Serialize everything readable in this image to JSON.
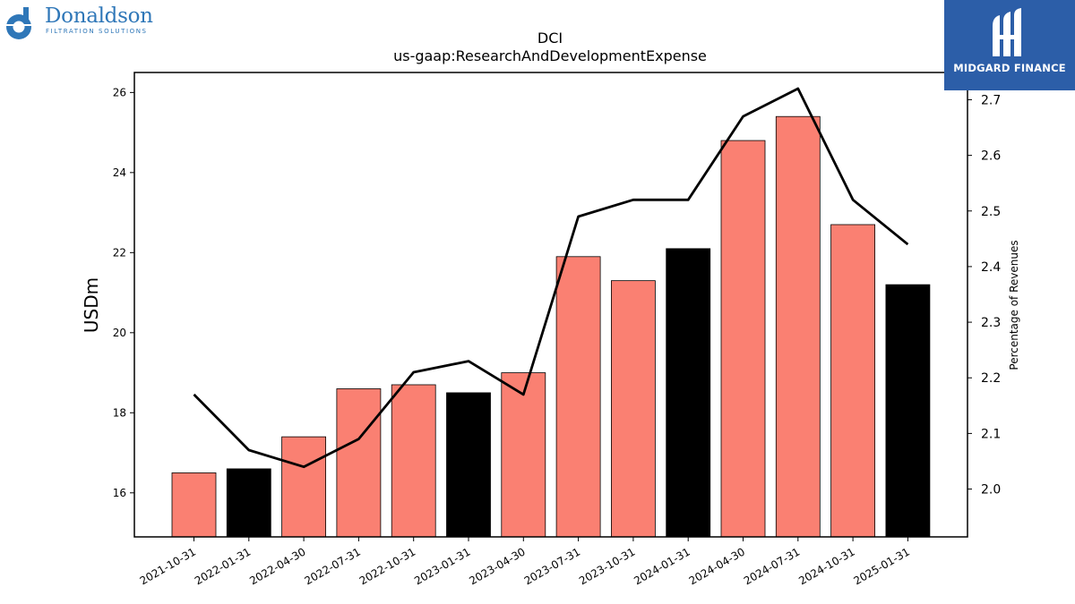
{
  "brands": {
    "left": {
      "name": "Donaldson",
      "tagline": "FILTRATION SOLUTIONS",
      "accent": "#2f77b8"
    },
    "right": {
      "name": "MIDGARD FINANCE",
      "background": "#2c5ea8"
    }
  },
  "chart_data": {
    "type": "bar",
    "title": "DCI",
    "subtitle": "us-gaap:ResearchAndDevelopmentExpense",
    "xlabel": "",
    "ylabel": "USDm",
    "ylabel_right": "Percentage of Revenues",
    "ylim": [
      14.9,
      26.5
    ],
    "ylim_right": [
      1.914,
      2.749
    ],
    "yticks": [
      16,
      18,
      20,
      22,
      24,
      26
    ],
    "yticks_right": [
      2.0,
      2.1,
      2.2,
      2.3,
      2.4,
      2.5,
      2.6,
      2.7
    ],
    "grid": false,
    "categories": [
      "2021-10-31",
      "2022-01-31",
      "2022-04-30",
      "2022-07-31",
      "2022-10-31",
      "2023-01-31",
      "2023-04-30",
      "2023-07-31",
      "2023-10-31",
      "2024-01-31",
      "2024-04-30",
      "2024-07-31",
      "2024-10-31",
      "2025-01-31"
    ],
    "series": [
      {
        "type": "bar",
        "axis": "left",
        "values": [
          16.5,
          16.6,
          17.4,
          18.6,
          18.7,
          18.5,
          19.0,
          21.9,
          21.3,
          22.1,
          24.8,
          25.4,
          22.7,
          21.2
        ],
        "colors": [
          "#fa8072",
          "#000000",
          "#fa8072",
          "#fa8072",
          "#fa8072",
          "#000000",
          "#fa8072",
          "#fa8072",
          "#fa8072",
          "#000000",
          "#fa8072",
          "#fa8072",
          "#fa8072",
          "#000000"
        ]
      },
      {
        "type": "line",
        "axis": "right",
        "color": "#000000",
        "values": [
          2.17,
          2.07,
          2.04,
          2.09,
          2.21,
          2.23,
          2.17,
          2.49,
          2.52,
          2.52,
          2.67,
          2.72,
          2.52,
          2.44
        ]
      }
    ]
  }
}
